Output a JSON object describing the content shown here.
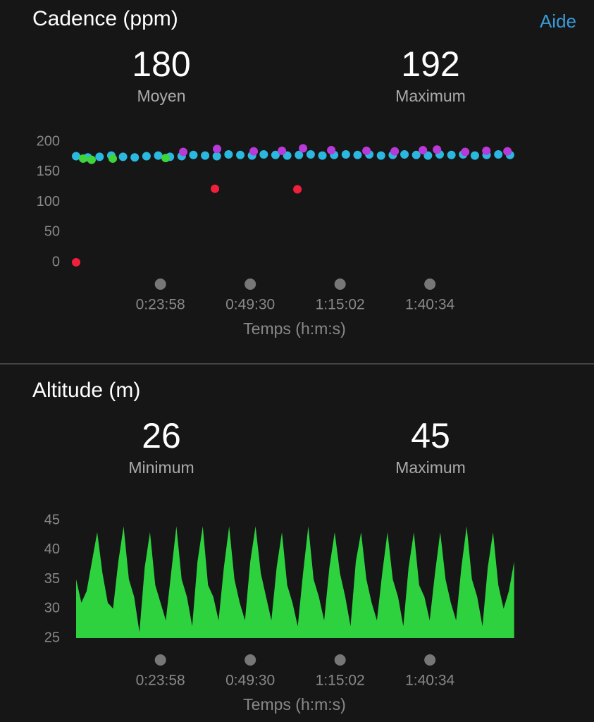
{
  "help": "Aide",
  "chart_data": [
    {
      "type": "scatter",
      "title": "Cadence (ppm)",
      "stats": [
        {
          "value": 180,
          "label": "Moyen"
        },
        {
          "value": 192,
          "label": "Maximum"
        }
      ],
      "x_label": "Temps (h:m:s)",
      "xlim": [
        0,
        7510
      ],
      "xticks": [
        {
          "value": 1438,
          "label": "0:23:58"
        },
        {
          "value": 2970,
          "label": "0:49:30"
        },
        {
          "value": 4502,
          "label": "1:15:02"
        },
        {
          "value": 6034,
          "label": "1:40:34"
        }
      ],
      "ylim": [
        0,
        200
      ],
      "yticks": [
        0,
        50,
        100,
        150,
        200
      ],
      "series": [
        {
          "color": "#2ab8e0",
          "x": [
            0,
            200,
            400,
            600,
            800,
            1000,
            1200,
            1400,
            1600,
            1800,
            2000,
            2200,
            2400,
            2600,
            2800,
            3000,
            3200,
            3400,
            3600,
            3800,
            4000,
            4200,
            4400,
            4600,
            4800,
            5000,
            5200,
            5400,
            5600,
            5800,
            6000,
            6200,
            6400,
            6600,
            6800,
            7000,
            7200,
            7400
          ],
          "values": [
            176,
            174,
            175,
            177,
            175,
            174,
            176,
            177,
            175,
            176,
            178,
            177,
            176,
            179,
            178,
            177,
            179,
            178,
            177,
            178,
            179,
            177,
            178,
            179,
            178,
            179,
            177,
            178,
            179,
            178,
            177,
            179,
            178,
            179,
            177,
            178,
            179,
            178
          ]
        },
        {
          "color": "#b83ad8",
          "x": [
            1827,
            2404,
            3029,
            3510,
            3870,
            4351,
            4952,
            5433,
            5914,
            6154,
            6635,
            6996,
            7356
          ],
          "values": [
            183,
            188,
            184,
            185,
            189,
            186,
            185,
            184,
            186,
            187,
            183,
            185,
            184
          ]
        },
        {
          "color": "#3ed43a",
          "x": [
            120,
            264,
            625,
            1527
          ],
          "values": [
            172,
            170,
            172,
            173
          ]
        },
        {
          "color": "#f0203c",
          "x": [
            0,
            2368,
            3774
          ],
          "values": [
            0,
            122,
            121
          ]
        }
      ]
    },
    {
      "type": "area",
      "title": "Altitude (m)",
      "stats": [
        {
          "value": 26,
          "label": "Minimum"
        },
        {
          "value": 45,
          "label": "Maximum"
        }
      ],
      "x_label": "Temps (h:m:s)",
      "xlim": [
        0,
        7510
      ],
      "xticks": [
        {
          "value": 1438,
          "label": "0:23:58"
        },
        {
          "value": 2970,
          "label": "0:49:30"
        },
        {
          "value": 4502,
          "label": "1:15:02"
        },
        {
          "value": 6034,
          "label": "1:40:34"
        }
      ],
      "ylim": [
        25,
        45
      ],
      "yticks": [
        25,
        30,
        35,
        40,
        45
      ],
      "color": "#2ed23f",
      "x": [
        0,
        90,
        180,
        270,
        360,
        450,
        540,
        630,
        720,
        810,
        900,
        990,
        1080,
        1170,
        1260,
        1350,
        1440,
        1530,
        1620,
        1710,
        1800,
        1890,
        1980,
        2070,
        2160,
        2250,
        2340,
        2430,
        2520,
        2610,
        2700,
        2790,
        2880,
        2970,
        3060,
        3150,
        3240,
        3330,
        3420,
        3510,
        3600,
        3690,
        3780,
        3870,
        3960,
        4050,
        4140,
        4230,
        4320,
        4410,
        4500,
        4590,
        4680,
        4770,
        4860,
        4950,
        5040,
        5130,
        5220,
        5310,
        5400,
        5490,
        5580,
        5670,
        5760,
        5850,
        5940,
        6030,
        6120,
        6210,
        6300,
        6390,
        6480,
        6570,
        6660,
        6750,
        6840,
        6930,
        7020,
        7110,
        7200,
        7290,
        7380,
        7470
      ],
      "values": [
        35,
        31,
        33,
        38,
        43,
        36,
        31,
        30,
        38,
        44,
        35,
        32,
        26,
        37,
        43,
        34,
        31,
        28,
        36,
        44,
        35,
        32,
        27,
        38,
        44,
        34,
        32,
        28,
        37,
        44,
        35,
        31,
        28,
        38,
        44,
        36,
        32,
        28,
        37,
        43,
        34,
        31,
        27,
        36,
        44,
        35,
        32,
        28,
        37,
        43,
        36,
        32,
        27,
        38,
        43,
        35,
        31,
        28,
        36,
        43,
        35,
        32,
        27,
        37,
        43,
        34,
        32,
        28,
        36,
        43,
        35,
        31,
        28,
        37,
        44,
        35,
        32,
        27,
        37,
        43,
        34,
        30,
        33,
        38
      ]
    }
  ]
}
